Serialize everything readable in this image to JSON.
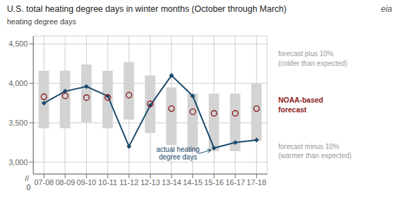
{
  "chart_data": {
    "type": "bar",
    "title": "U.S. total heating degree days in winter months (October through March)",
    "ylabel": "heating degree days",
    "categories": [
      "07-08",
      "08-09",
      "09-10",
      "10-11",
      "11-12",
      "12-13",
      "13-14",
      "14-15",
      "15-16",
      "16-17",
      "17-18"
    ],
    "series": [
      {
        "name": "forecast plus 10%\n(colder than expected)",
        "type": "bar",
        "color": "#d3d3d3",
        "values": [
          4160,
          4160,
          4240,
          4160,
          4270,
          4100,
          3950,
          3870,
          3870,
          3870,
          4000
        ]
      },
      {
        "name": "NOAA-based\nforecast",
        "type": "scatter",
        "color": "#8b1a1a",
        "marker": "circle",
        "values": [
          3830,
          3840,
          3820,
          3820,
          3850,
          3740,
          3680,
          3640,
          3620,
          3620,
          3680
        ]
      },
      {
        "name": "forecast minus 10%\n(warmer than expected)",
        "type": "bar",
        "color": "#d3d3d3",
        "values": [
          3430,
          3430,
          3510,
          3430,
          3540,
          3370,
          3220,
          3140,
          3140,
          3140,
          3270
        ]
      },
      {
        "type": "line",
        "color": "#1a4a6b",
        "marker": "diamond",
        "values": [
          3750,
          3900,
          3960,
          3840,
          3200,
          3720,
          4100,
          3840,
          3180,
          3250,
          3280
        ]
      }
    ],
    "annotations": [
      {
        "text": "actual heating\ndegree days",
        "category": "15-16"
      },
      {
        "text": "//"
      },
      {
        "text": "0"
      },
      {
        "text": "eia"
      }
    ],
    "ylim": [
      2850,
      4600
    ],
    "yticks": [
      {
        "value": 3000,
        "label": "3,000"
      },
      {
        "value": 3500,
        "label": "3,500"
      },
      {
        "value": 4000,
        "label": "4,000"
      },
      {
        "value": 4500,
        "label": "4,500"
      }
    ],
    "grid": true
  }
}
